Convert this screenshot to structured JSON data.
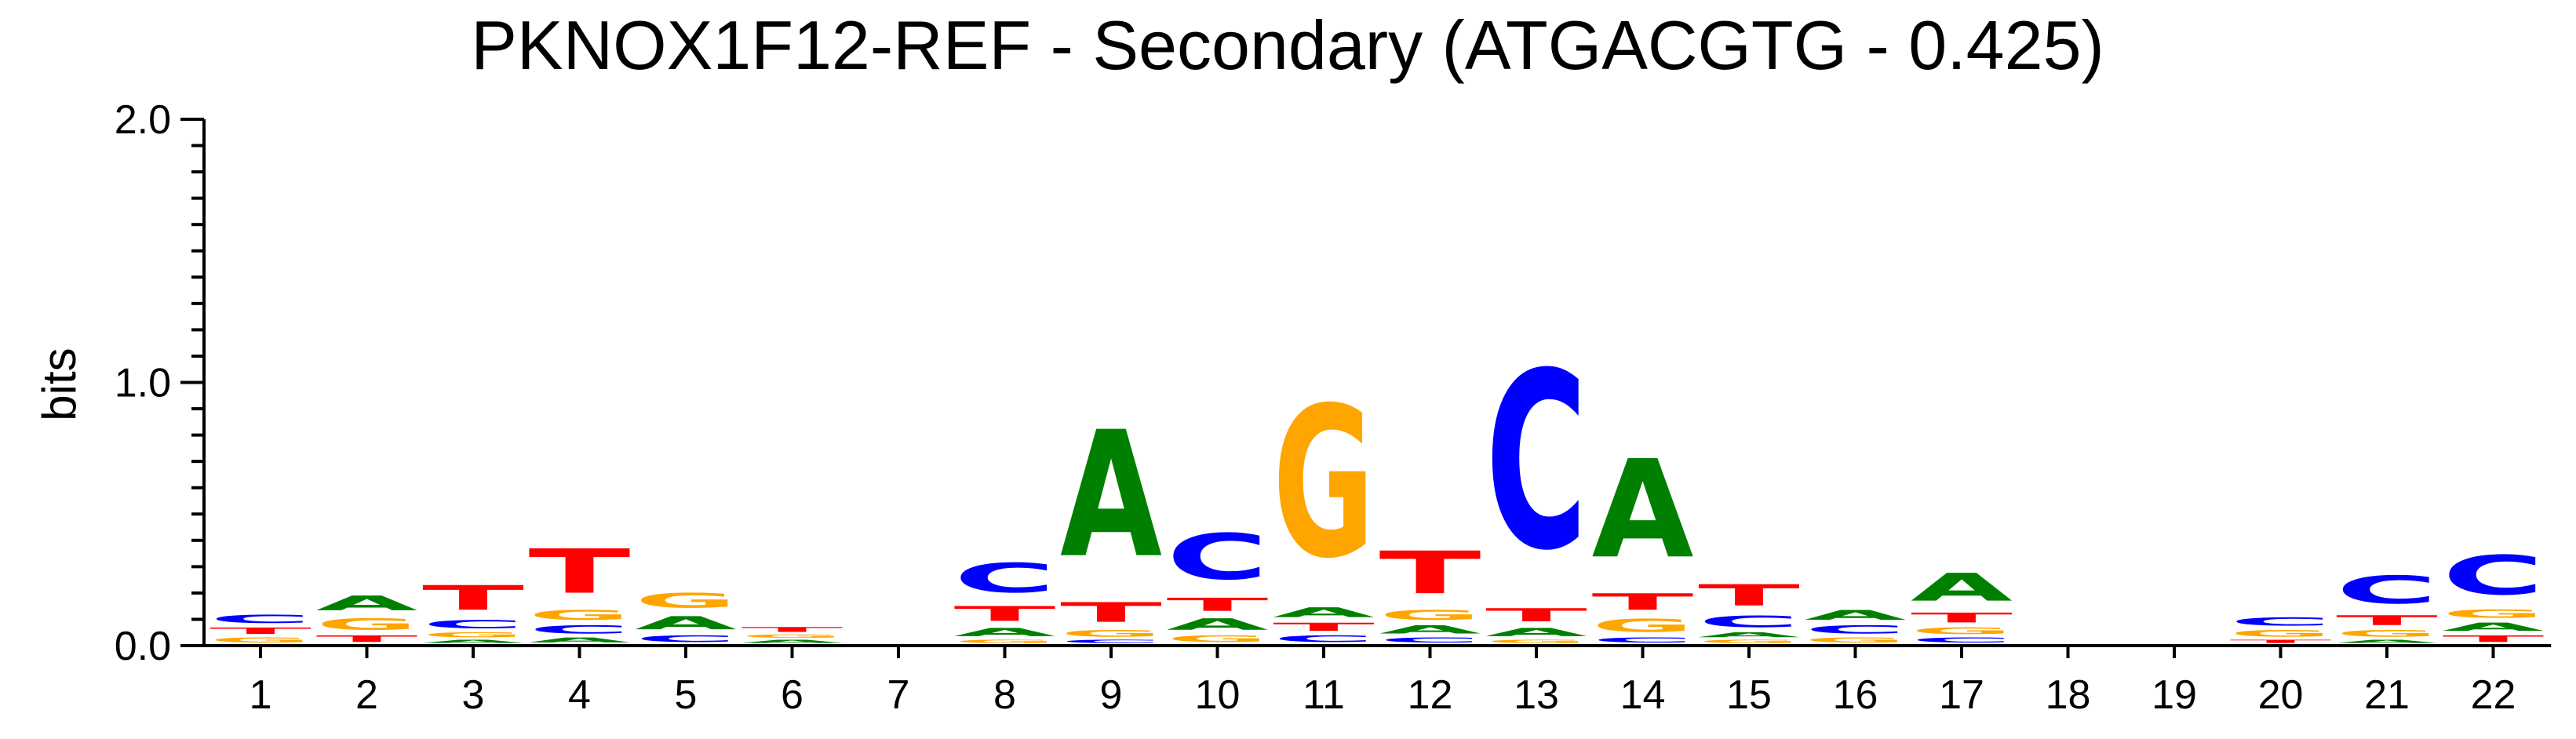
{
  "chart_data": {
    "type": "sequence-logo",
    "title": "PKNOX1F12-REF - Secondary (ATGACGTG - 0.425)",
    "ylabel": "bits",
    "ylim": [
      0,
      2.0
    ],
    "y_ticks": [
      "0.0",
      "1.0",
      "2.0"
    ],
    "colors": {
      "A": "#008000",
      "C": "#0000ff",
      "G": "#ffa500",
      "T": "#ff0000"
    },
    "positions": [
      {
        "label": "1",
        "letters": [
          {
            "b": "G",
            "h": 0.03
          },
          {
            "b": "T",
            "h": 0.04
          },
          {
            "b": "C",
            "h": 0.05
          }
        ]
      },
      {
        "label": "2",
        "letters": [
          {
            "b": "T",
            "h": 0.04
          },
          {
            "b": "G",
            "h": 0.07
          },
          {
            "b": "A",
            "h": 0.09
          }
        ]
      },
      {
        "label": "3",
        "letters": [
          {
            "b": "A",
            "h": 0.02
          },
          {
            "b": "G",
            "h": 0.03
          },
          {
            "b": "C",
            "h": 0.05
          },
          {
            "b": "T",
            "h": 0.15
          }
        ]
      },
      {
        "label": "4",
        "letters": [
          {
            "b": "A",
            "h": 0.03
          },
          {
            "b": "C",
            "h": 0.05
          },
          {
            "b": "G",
            "h": 0.06
          },
          {
            "b": "T",
            "h": 0.27
          }
        ]
      },
      {
        "label": "5",
        "letters": [
          {
            "b": "C",
            "h": 0.04
          },
          {
            "b": "A",
            "h": 0.08
          },
          {
            "b": "G",
            "h": 0.09
          }
        ]
      },
      {
        "label": "6",
        "letters": [
          {
            "b": "A",
            "h": 0.02
          },
          {
            "b": "G",
            "h": 0.02
          },
          {
            "b": "T",
            "h": 0.03
          }
        ]
      },
      {
        "label": "7",
        "letters": []
      },
      {
        "label": "8",
        "letters": [
          {
            "b": "G",
            "h": 0.02
          },
          {
            "b": "A",
            "h": 0.05
          },
          {
            "b": "T",
            "h": 0.09
          },
          {
            "b": "C",
            "h": 0.18
          }
        ]
      },
      {
        "label": "9",
        "letters": [
          {
            "b": "C",
            "h": 0.02
          },
          {
            "b": "G",
            "h": 0.04
          },
          {
            "b": "T",
            "h": 0.12
          },
          {
            "b": "A",
            "h": 0.77
          }
        ]
      },
      {
        "label": "10",
        "letters": [
          {
            "b": "G",
            "h": 0.04
          },
          {
            "b": "A",
            "h": 0.07
          },
          {
            "b": "T",
            "h": 0.08
          },
          {
            "b": "C",
            "h": 0.28
          }
        ]
      },
      {
        "label": "11",
        "letters": [
          {
            "b": "C",
            "h": 0.04
          },
          {
            "b": "T",
            "h": 0.05
          },
          {
            "b": "A",
            "h": 0.06
          },
          {
            "b": "G",
            "h": 0.92
          }
        ]
      },
      {
        "label": "12",
        "letters": [
          {
            "b": "C",
            "h": 0.03
          },
          {
            "b": "A",
            "h": 0.05
          },
          {
            "b": "G",
            "h": 0.06
          },
          {
            "b": "T",
            "h": 0.26
          }
        ]
      },
      {
        "label": "13",
        "letters": [
          {
            "b": "G",
            "h": 0.02
          },
          {
            "b": "A",
            "h": 0.05
          },
          {
            "b": "T",
            "h": 0.08
          },
          {
            "b": "C",
            "h": 1.08
          }
        ]
      },
      {
        "label": "14",
        "letters": [
          {
            "b": "C",
            "h": 0.03
          },
          {
            "b": "G",
            "h": 0.08
          },
          {
            "b": "T",
            "h": 0.1
          },
          {
            "b": "A",
            "h": 0.6
          }
        ]
      },
      {
        "label": "15",
        "letters": [
          {
            "b": "G",
            "h": 0.02
          },
          {
            "b": "A",
            "h": 0.03
          },
          {
            "b": "C",
            "h": 0.07
          },
          {
            "b": "T",
            "h": 0.13
          }
        ]
      },
      {
        "label": "16",
        "letters": [
          {
            "b": "G",
            "h": 0.03
          },
          {
            "b": "C",
            "h": 0.05
          },
          {
            "b": "A",
            "h": 0.06
          }
        ]
      },
      {
        "label": "17",
        "letters": [
          {
            "b": "C",
            "h": 0.03
          },
          {
            "b": "G",
            "h": 0.04
          },
          {
            "b": "T",
            "h": 0.06
          },
          {
            "b": "A",
            "h": 0.17
          }
        ]
      },
      {
        "label": "18",
        "letters": []
      },
      {
        "label": "19",
        "letters": []
      },
      {
        "label": "20",
        "letters": [
          {
            "b": "T",
            "h": 0.02
          },
          {
            "b": "G",
            "h": 0.04
          },
          {
            "b": "C",
            "h": 0.05
          }
        ]
      },
      {
        "label": "21",
        "letters": [
          {
            "b": "A",
            "h": 0.02
          },
          {
            "b": "G",
            "h": 0.04
          },
          {
            "b": "T",
            "h": 0.06
          },
          {
            "b": "C",
            "h": 0.17
          }
        ]
      },
      {
        "label": "22",
        "letters": [
          {
            "b": "T",
            "h": 0.04
          },
          {
            "b": "A",
            "h": 0.05
          },
          {
            "b": "G",
            "h": 0.05
          },
          {
            "b": "C",
            "h": 0.24
          }
        ]
      }
    ]
  }
}
